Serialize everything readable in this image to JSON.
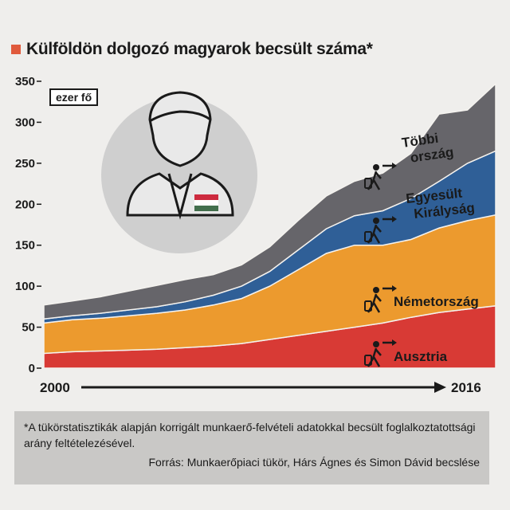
{
  "title": "Külföldön dolgozó magyarok becsült száma*",
  "unit": "ezer fő",
  "colors": {
    "accent": "#e05a3c",
    "ausztria": "#d83a35",
    "nemetorszag": "#ec9a2e",
    "egyesult_kiralysag": "#2f5f97",
    "tobbi": "#66656a",
    "background": "#efeeec",
    "footnote_bg": "#c9c8c6",
    "illustration_circle": "#cfcfcf"
  },
  "chart_data": {
    "type": "area",
    "stacked": true,
    "x": [
      2000,
      2001,
      2002,
      2003,
      2004,
      2005,
      2006,
      2007,
      2008,
      2009,
      2010,
      2011,
      2012,
      2013,
      2014,
      2015,
      2016
    ],
    "x_tick_labels": [
      "2000",
      "2016"
    ],
    "ylim": [
      0,
      350
    ],
    "yticks": [
      0,
      50,
      100,
      150,
      200,
      250,
      300,
      350
    ],
    "series": [
      {
        "name": "Ausztria",
        "color": "#d83a35",
        "values": [
          18,
          20,
          21,
          22,
          23,
          25,
          27,
          30,
          35,
          40,
          45,
          50,
          55,
          62,
          68,
          72,
          76
        ]
      },
      {
        "name": "Németország",
        "color": "#ec9a2e",
        "values": [
          37,
          39,
          40,
          42,
          44,
          46,
          50,
          55,
          65,
          80,
          95,
          100,
          95,
          95,
          103,
          108,
          111
        ]
      },
      {
        "name": "Egyesült Királyság",
        "color": "#2f5f97",
        "values": [
          5,
          5,
          6,
          7,
          8,
          10,
          12,
          15,
          18,
          24,
          30,
          36,
          42,
          50,
          57,
          70,
          78
        ]
      },
      {
        "name": "Többi ország",
        "color": "#66656a",
        "values": [
          17,
          18,
          20,
          23,
          26,
          27,
          25,
          26,
          30,
          36,
          40,
          42,
          46,
          55,
          82,
          65,
          82
        ]
      }
    ],
    "grid": false
  },
  "footnote": {
    "text": "*A tükörstatisztikák alapján korrigált munkaerő-felvételi adatokkal becsült foglalkoztatottsági arány feltételezésével.",
    "source": "Forrás: Munkaerőpiaci tükör, Hárs Ágnes és Simon Dávid becslése"
  },
  "icons": [
    "person-with-hungarian-flag-icon",
    "traveler-arrow-icon"
  ]
}
